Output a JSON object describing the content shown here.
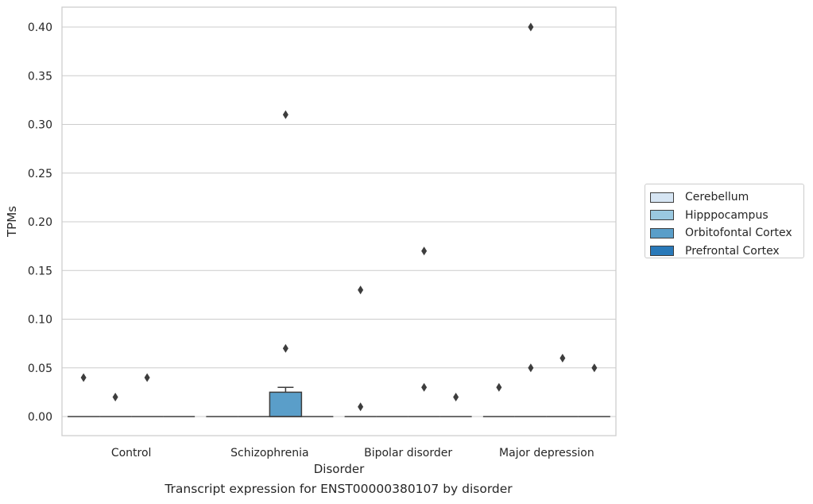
{
  "chart_data": {
    "type": "box",
    "caption": "Transcript expression for ENST00000380107 by disorder",
    "xlabel": "Disorder",
    "ylabel": "TPMs",
    "ylim": [
      -0.02,
      0.42
    ],
    "yticks": [
      0.0,
      0.05,
      0.1,
      0.15,
      0.2,
      0.25,
      0.3,
      0.35,
      0.4
    ],
    "ytick_labels": [
      "0.00",
      "0.05",
      "0.10",
      "0.15",
      "0.20",
      "0.25",
      "0.30",
      "0.35",
      "0.40"
    ],
    "categories": [
      "Control",
      "Schizophrenia",
      "Bipolar disorder",
      "Major depression"
    ],
    "grid": "horizontal",
    "legend_position": "right",
    "series": [
      {
        "name": "Cerebellum",
        "color": "#d6e5f3",
        "boxes": [
          {
            "q1": 0,
            "median": 0,
            "q3": 0,
            "whisker_low": 0,
            "whisker_high": 0,
            "outliers": [
              0.04
            ]
          },
          {
            "q1": 0,
            "median": 0,
            "q3": 0,
            "whisker_low": 0,
            "whisker_high": 0,
            "outliers": []
          },
          {
            "q1": 0,
            "median": 0,
            "q3": 0,
            "whisker_low": 0,
            "whisker_high": 0,
            "outliers": [
              0.13,
              0.01
            ]
          },
          {
            "q1": 0,
            "median": 0,
            "q3": 0,
            "whisker_low": 0,
            "whisker_high": 0,
            "outliers": [
              0.03
            ]
          }
        ]
      },
      {
        "name": "Hipppocampus",
        "color": "#9ac8e0",
        "boxes": [
          {
            "q1": 0,
            "median": 0,
            "q3": 0,
            "whisker_low": 0,
            "whisker_high": 0,
            "outliers": [
              0.02
            ]
          },
          {
            "q1": 0,
            "median": 0,
            "q3": 0,
            "whisker_low": 0,
            "whisker_high": 0,
            "outliers": []
          },
          {
            "q1": 0,
            "median": 0,
            "q3": 0,
            "whisker_low": 0,
            "whisker_high": 0,
            "outliers": []
          },
          {
            "q1": 0,
            "median": 0,
            "q3": 0,
            "whisker_low": 0,
            "whisker_high": 0,
            "outliers": [
              0.05,
              0.4
            ]
          }
        ]
      },
      {
        "name": "Orbitofontal Cortex",
        "color": "#5a9ec9",
        "boxes": [
          {
            "q1": 0,
            "median": 0,
            "q3": 0,
            "whisker_low": 0,
            "whisker_high": 0,
            "outliers": [
              0.04
            ]
          },
          {
            "q1": 0,
            "median": 0,
            "q3": 0.025,
            "whisker_low": 0,
            "whisker_high": 0.03,
            "outliers": [
              0.31,
              0.07
            ]
          },
          {
            "q1": 0,
            "median": 0,
            "q3": 0,
            "whisker_low": 0,
            "whisker_high": 0,
            "outliers": [
              0.17,
              0.03
            ]
          },
          {
            "q1": 0,
            "median": 0,
            "q3": 0,
            "whisker_low": 0,
            "whisker_high": 0,
            "outliers": [
              0.06
            ]
          }
        ]
      },
      {
        "name": "Prefrontal Cortex",
        "color": "#2979b9",
        "boxes": [
          {
            "q1": 0,
            "median": 0,
            "q3": 0,
            "whisker_low": 0,
            "whisker_high": 0,
            "outliers": []
          },
          {
            "q1": 0,
            "median": 0,
            "q3": 0,
            "whisker_low": 0,
            "whisker_high": 0,
            "outliers": []
          },
          {
            "q1": 0,
            "median": 0,
            "q3": 0,
            "whisker_low": 0,
            "whisker_high": 0,
            "outliers": [
              0.02
            ]
          },
          {
            "q1": 0,
            "median": 0,
            "q3": 0,
            "whisker_low": 0,
            "whisker_high": 0,
            "outliers": [
              0.05
            ]
          }
        ]
      }
    ]
  }
}
